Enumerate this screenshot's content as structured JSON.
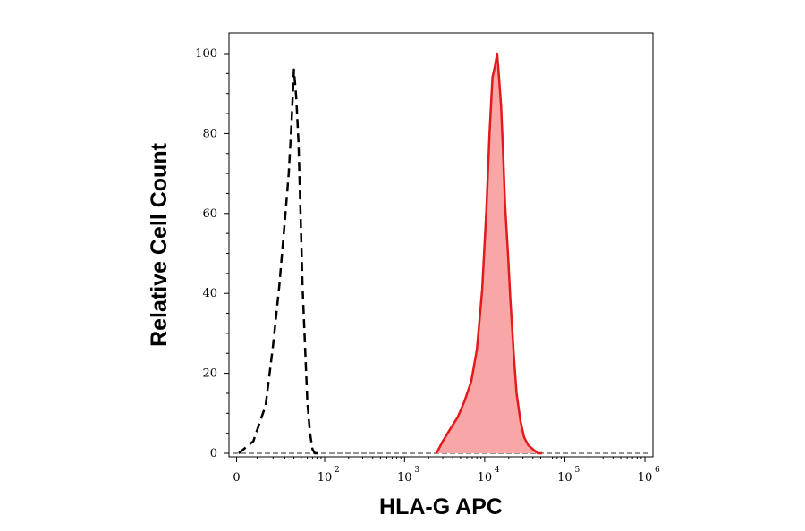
{
  "chart_data": {
    "type": "area",
    "title": "",
    "xlabel": "HLA-G APC",
    "ylabel": "Relative Cell Count",
    "xscale": "biexponential",
    "xlim": [
      -400,
      1000000
    ],
    "ylim": [
      0,
      104
    ],
    "grid": false,
    "legend": "none",
    "x_ticks": [
      {
        "value": 0,
        "base": "0",
        "exp": ""
      },
      {
        "value": 100,
        "base": "10",
        "exp": "2"
      },
      {
        "value": 1000,
        "base": "10",
        "exp": "3"
      },
      {
        "value": 10000,
        "base": "10",
        "exp": "4"
      },
      {
        "value": 100000,
        "base": "10",
        "exp": "5"
      },
      {
        "value": 1000000,
        "base": "10",
        "exp": "6"
      }
    ],
    "y_ticks": [
      0,
      20,
      40,
      60,
      80,
      100
    ],
    "series": [
      {
        "style": "dashed-outline",
        "color": "#000000",
        "x": [
          1,
          8,
          15,
          20,
          25,
          30,
          34,
          37,
          40,
          43,
          46,
          49,
          52,
          56,
          60,
          65,
          70,
          75,
          80,
          85
        ],
        "y": [
          0,
          3,
          12,
          27,
          42,
          58,
          70,
          82,
          96,
          89,
          78,
          60,
          42,
          27,
          13,
          5,
          1,
          0,
          0,
          0
        ]
      },
      {
        "style": "filled",
        "color": "#e31a1c",
        "fill": "#f9a6a6",
        "x": [
          2500,
          3000,
          3700,
          4600,
          5600,
          6800,
          8000,
          9300,
          10500,
          11500,
          12500,
          13500,
          14300,
          15000,
          16000,
          17000,
          18000,
          19500,
          21000,
          23000,
          25000,
          28000,
          31000,
          35000,
          40000,
          46000,
          52000
        ],
        "y": [
          0,
          3,
          6,
          9,
          13,
          18,
          26,
          41,
          61,
          80,
          94,
          97,
          100,
          95,
          87,
          75,
          62,
          50,
          38,
          25,
          15,
          8,
          4,
          2,
          1,
          0,
          0
        ]
      }
    ]
  }
}
